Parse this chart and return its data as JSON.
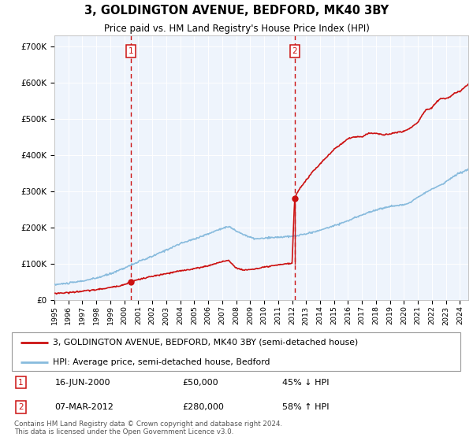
{
  "title": "3, GOLDINGTON AVENUE, BEDFORD, MK40 3BY",
  "subtitle": "Price paid vs. HM Land Registry's House Price Index (HPI)",
  "plot_bg": "#eef4fc",
  "transaction1": {
    "date_num": 2000.46,
    "price": 50000,
    "label": "1",
    "date_str": "16-JUN-2000",
    "pct": "45% ↓ HPI"
  },
  "transaction2": {
    "date_num": 2012.18,
    "price": 280000,
    "label": "2",
    "date_str": "07-MAR-2012",
    "pct": "58% ↑ HPI"
  },
  "legend_red": "3, GOLDINGTON AVENUE, BEDFORD, MK40 3BY (semi-detached house)",
  "legend_blue": "HPI: Average price, semi-detached house, Bedford",
  "footnote": "Contains HM Land Registry data © Crown copyright and database right 2024.\nThis data is licensed under the Open Government Licence v3.0.",
  "ylim": [
    0,
    730000
  ],
  "xlim_start": 1995.0,
  "xlim_end": 2024.6,
  "red_color": "#cc1111",
  "blue_color": "#88bbdd",
  "hpi_keypoints_t": [
    1995.0,
    1996,
    1997,
    1998,
    1999,
    2000,
    2001,
    2002,
    2003,
    2004,
    2005,
    2006,
    2007,
    2007.5,
    2008,
    2009,
    2009.5,
    2010,
    2011,
    2012,
    2013,
    2014,
    2015,
    2016,
    2017,
    2018,
    2019,
    2020,
    2020.5,
    2021,
    2021.5,
    2022,
    2022.5,
    2023,
    2023.5,
    2024,
    2024.6
  ],
  "hpi_keypoints_v": [
    42000,
    46000,
    52000,
    60000,
    72000,
    88000,
    105000,
    120000,
    138000,
    155000,
    168000,
    182000,
    198000,
    202000,
    190000,
    172000,
    168000,
    170000,
    173000,
    175000,
    182000,
    192000,
    205000,
    218000,
    235000,
    248000,
    258000,
    262000,
    270000,
    285000,
    295000,
    305000,
    315000,
    325000,
    340000,
    350000,
    360000
  ],
  "red_keypoints_t": [
    1995.0,
    1996,
    1997,
    1998,
    1999,
    2000.0,
    2000.46,
    2001,
    2002,
    2003,
    2004,
    2005,
    2006,
    2007,
    2007.5,
    2008,
    2008.5,
    2009,
    2009.5,
    2010,
    2011,
    2011.5,
    2012.0,
    2012.18,
    2012.5,
    2013,
    2013.5,
    2014,
    2014.5,
    2015,
    2015.5,
    2016,
    2016.5,
    2017,
    2017.5,
    2018,
    2018.5,
    2019,
    2019.5,
    2020,
    2020.5,
    2021,
    2021.3,
    2021.6,
    2022,
    2022.3,
    2022.6,
    2023,
    2023.3,
    2023.6,
    2024,
    2024.3,
    2024.6
  ],
  "red_keypoints_v": [
    18000,
    20000,
    24000,
    28000,
    34000,
    42000,
    50000,
    56000,
    65000,
    72000,
    80000,
    86000,
    94000,
    106000,
    108000,
    88000,
    82000,
    84000,
    86000,
    90000,
    96000,
    100000,
    100000,
    280000,
    305000,
    330000,
    355000,
    375000,
    395000,
    415000,
    430000,
    445000,
    450000,
    450000,
    460000,
    460000,
    455000,
    458000,
    462000,
    465000,
    475000,
    490000,
    510000,
    525000,
    530000,
    545000,
    555000,
    555000,
    560000,
    570000,
    575000,
    585000,
    595000
  ]
}
